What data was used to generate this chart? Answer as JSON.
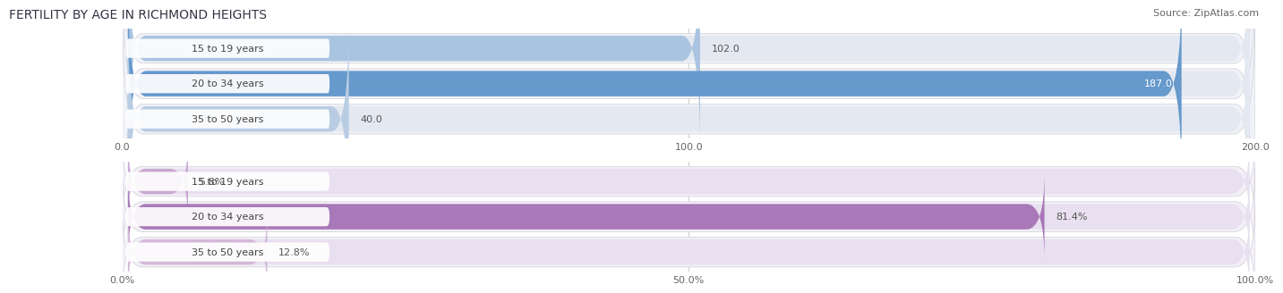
{
  "title": "FERTILITY BY AGE IN RICHMOND HEIGHTS",
  "source": "Source: ZipAtlas.com",
  "top_chart": {
    "categories": [
      "15 to 19 years",
      "20 to 34 years",
      "35 to 50 years"
    ],
    "values": [
      102.0,
      187.0,
      40.0
    ],
    "xlim": [
      0,
      200
    ],
    "xticks": [
      0.0,
      100.0,
      200.0
    ],
    "xtick_labels": [
      "0.0",
      "100.0",
      "200.0"
    ],
    "bar_colors": [
      "#a8c4e0",
      "#6699cc",
      "#b8cce4"
    ],
    "bar_bg_color": "#e4e8f0",
    "row_bg_color": "#f0f2f7",
    "label_inside_color": "#ffffff",
    "label_outside_color": "#555555"
  },
  "bottom_chart": {
    "categories": [
      "15 to 19 years",
      "20 to 34 years",
      "35 to 50 years"
    ],
    "values": [
      5.8,
      81.4,
      12.8
    ],
    "xlim": [
      0,
      100
    ],
    "xticks": [
      0.0,
      50.0,
      100.0
    ],
    "xtick_labels": [
      "0.0%",
      "50.0%",
      "100.0%"
    ],
    "bar_colors": [
      "#c8a8d0",
      "#a878b8",
      "#d4b8d8"
    ],
    "bar_bg_color": "#e8e0f0",
    "row_bg_color": "#f2eff7",
    "label_inside_color": "#ffffff",
    "label_outside_color": "#555555"
  },
  "fig_bg_color": "#ffffff",
  "title_fontsize": 10,
  "source_fontsize": 8,
  "label_fontsize": 8,
  "tick_fontsize": 8,
  "cat_fontsize": 8
}
